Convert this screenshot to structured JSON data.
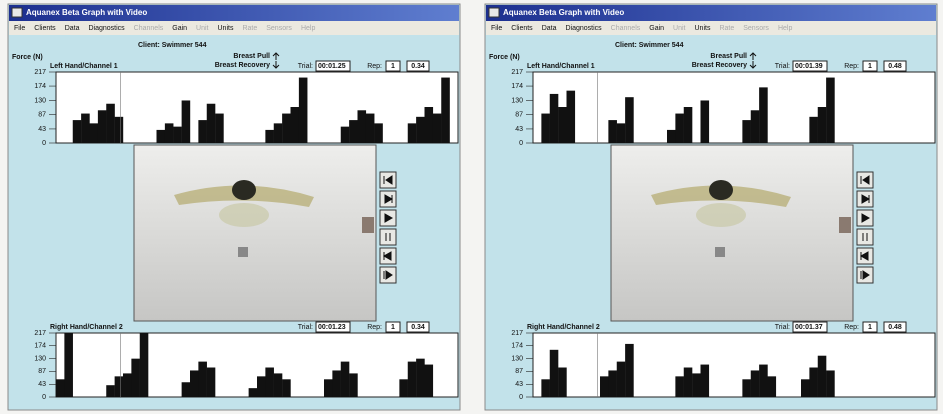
{
  "windows": [
    {
      "title": "Aquanex Beta Graph with Video",
      "menu": [
        {
          "label": "File",
          "enabled": true
        },
        {
          "label": "Clients",
          "enabled": true
        },
        {
          "label": "Data",
          "enabled": true
        },
        {
          "label": "Diagnostics",
          "enabled": true
        },
        {
          "label": "Channels",
          "enabled": false
        },
        {
          "label": "Gain",
          "enabled": true
        },
        {
          "label": "Unit",
          "enabled": false
        },
        {
          "label": "Units",
          "enabled": true
        },
        {
          "label": "Rate",
          "enabled": false
        },
        {
          "label": "Sensors",
          "enabled": false
        },
        {
          "label": "Help",
          "enabled": false
        }
      ],
      "client": "Client: Swimmer 544",
      "force_label": "Force (N)",
      "stroke_legend": [
        "Breast Pull",
        "Breast Recovery"
      ],
      "plots": [
        {
          "channel": "Left Hand/Channel 1",
          "trial_label": "Trial:",
          "trial": "00:01.25",
          "rep_label": "Rep:",
          "rep": "1",
          "rep_value": "0.34",
          "ylim": [
            0,
            217
          ],
          "yticks": [
            217,
            174,
            130,
            87,
            43,
            0
          ],
          "color": "#111111",
          "values": [
            0,
            0,
            70,
            90,
            60,
            100,
            120,
            80,
            0,
            0,
            0,
            0,
            40,
            60,
            50,
            130,
            0,
            70,
            120,
            90,
            0,
            0,
            0,
            0,
            0,
            40,
            60,
            90,
            110,
            200,
            0,
            0,
            0,
            0,
            50,
            70,
            100,
            90,
            60,
            0,
            0,
            0,
            60,
            80,
            110,
            90,
            200,
            0
          ]
        },
        {
          "channel": "Right Hand/Channel 2",
          "trial_label": "Trial:",
          "trial": "00:01.23",
          "rep_label": "Rep:",
          "rep": "1",
          "rep_value": "0.34",
          "ylim": [
            0,
            217
          ],
          "yticks": [
            217,
            174,
            130,
            87,
            43,
            0
          ],
          "color": "#111111",
          "values": [
            60,
            217,
            0,
            0,
            0,
            0,
            40,
            70,
            80,
            130,
            217,
            0,
            0,
            0,
            0,
            50,
            90,
            120,
            100,
            0,
            0,
            0,
            0,
            30,
            70,
            100,
            80,
            60,
            0,
            0,
            0,
            0,
            60,
            90,
            120,
            80,
            0,
            0,
            0,
            0,
            0,
            60,
            120,
            130,
            110,
            0,
            0,
            0
          ]
        }
      ]
    },
    {
      "title": "Aquanex Beta Graph with Video",
      "menu": [
        {
          "label": "File",
          "enabled": true
        },
        {
          "label": "Clients",
          "enabled": true
        },
        {
          "label": "Data",
          "enabled": true
        },
        {
          "label": "Diagnostics",
          "enabled": true
        },
        {
          "label": "Channels",
          "enabled": false
        },
        {
          "label": "Gain",
          "enabled": true
        },
        {
          "label": "Unit",
          "enabled": false
        },
        {
          "label": "Units",
          "enabled": true
        },
        {
          "label": "Rate",
          "enabled": false
        },
        {
          "label": "Sensors",
          "enabled": false
        },
        {
          "label": "Help",
          "enabled": false
        }
      ],
      "client": "Client: Swimmer 544",
      "force_label": "Force (N)",
      "stroke_legend": [
        "Breast Pull",
        "Breast Recovery"
      ],
      "plots": [
        {
          "channel": "Left Hand/Channel 1",
          "trial_label": "Trial:",
          "trial": "00:01.39",
          "rep_label": "Rep:",
          "rep": "1",
          "rep_value": "0.48",
          "ylim": [
            0,
            217
          ],
          "yticks": [
            217,
            174,
            130,
            87,
            43,
            0
          ],
          "color": "#111111",
          "values": [
            0,
            90,
            150,
            110,
            160,
            0,
            0,
            0,
            0,
            70,
            60,
            140,
            0,
            0,
            0,
            0,
            40,
            90,
            110,
            0,
            130,
            0,
            0,
            0,
            0,
            70,
            100,
            170,
            0,
            0,
            0,
            0,
            0,
            80,
            110,
            200,
            0,
            0,
            0,
            0,
            0,
            0,
            0,
            0,
            0,
            0,
            0,
            0
          ]
        },
        {
          "channel": "Right Hand/Channel 2",
          "trial_label": "Trial:",
          "trial": "00:01.37",
          "rep_label": "Rep:",
          "rep": "1",
          "rep_value": "0.48",
          "ylim": [
            0,
            217
          ],
          "yticks": [
            217,
            174,
            130,
            87,
            43,
            0
          ],
          "color": "#111111",
          "values": [
            0,
            60,
            160,
            100,
            0,
            0,
            0,
            0,
            70,
            90,
            120,
            180,
            0,
            0,
            0,
            0,
            0,
            70,
            100,
            80,
            110,
            0,
            0,
            0,
            0,
            60,
            90,
            110,
            70,
            0,
            0,
            0,
            60,
            100,
            140,
            90,
            0,
            0,
            0,
            0,
            0,
            0,
            0,
            0,
            0,
            0,
            0,
            0
          ]
        }
      ]
    }
  ]
}
